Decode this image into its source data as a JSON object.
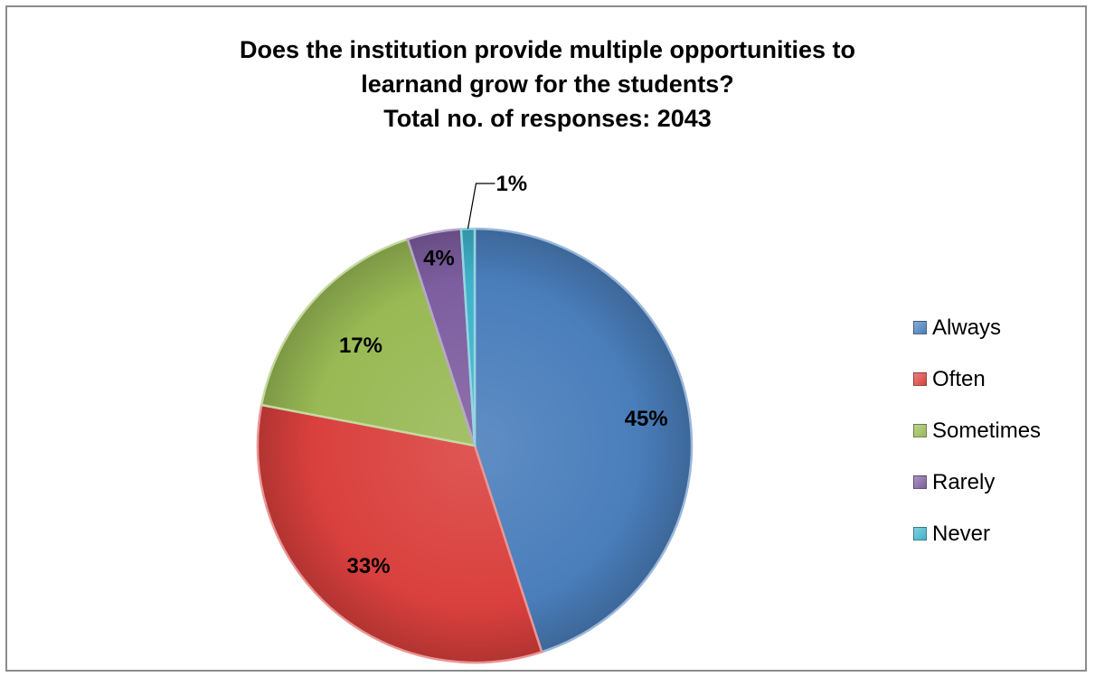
{
  "chart_data": {
    "type": "pie",
    "title": [
      "Does the institution provide multiple opportunities to",
      "learnand grow for the students?",
      "Total no. of responses: 2043"
    ],
    "categories": [
      "Always",
      "Often",
      "Sometimes",
      "Rarely",
      "Never"
    ],
    "values": [
      45,
      33,
      17,
      4,
      1
    ],
    "data_labels": [
      "45%",
      "33%",
      "17%",
      "4%",
      "1%"
    ],
    "colors": [
      "#4a7ebb",
      "#d9403d",
      "#98b954",
      "#7d5ea0",
      "#3fb3ca"
    ],
    "legend_position": "right"
  }
}
